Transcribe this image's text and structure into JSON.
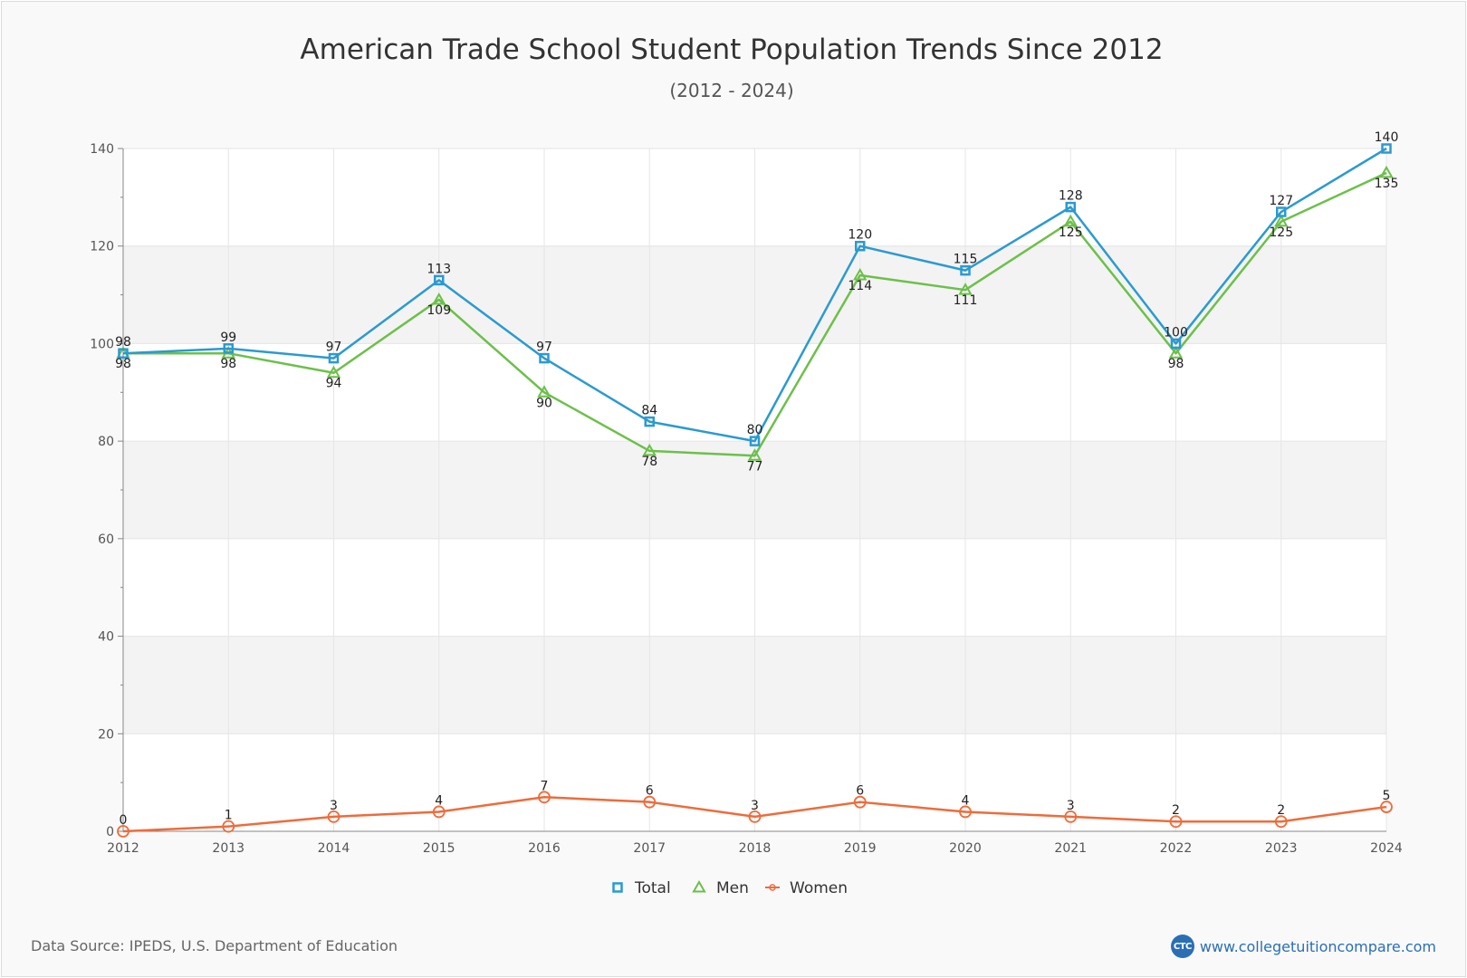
{
  "chart_data": {
    "type": "line",
    "title": "American Trade School Student Population Trends Since 2012",
    "subtitle": "(2012 - 2024)",
    "xlabel": "",
    "ylabel": "",
    "x": [
      "2012",
      "2013",
      "2014",
      "2015",
      "2016",
      "2017",
      "2018",
      "2019",
      "2020",
      "2021",
      "2022",
      "2023",
      "2024"
    ],
    "ylim": [
      0,
      140
    ],
    "yticks": [
      0,
      20,
      40,
      60,
      80,
      100,
      120,
      140
    ],
    "grid": true,
    "legend_position": "bottom",
    "series": [
      {
        "name": "Total",
        "color": "#2b9ad0",
        "marker": "square",
        "values": [
          98,
          99,
          97,
          113,
          97,
          84,
          80,
          120,
          115,
          128,
          100,
          127,
          140
        ]
      },
      {
        "name": "Men",
        "color": "#6cc04a",
        "marker": "triangle",
        "values": [
          98,
          98,
          94,
          109,
          90,
          78,
          77,
          114,
          111,
          125,
          98,
          125,
          135
        ]
      },
      {
        "name": "Women",
        "color": "#ef6b3a",
        "marker": "circle",
        "values": [
          0,
          1,
          3,
          4,
          7,
          6,
          3,
          6,
          4,
          3,
          2,
          2,
          5
        ]
      }
    ]
  },
  "footer": {
    "source": "Data Source: IPEDS, U.S. Department of Education",
    "brand_logo": "CTC",
    "brand_url": "www.collegetuitioncompare.com"
  },
  "colors": {
    "background": "#f9f9f9",
    "band": "#f3f3f3",
    "axis": "#555555",
    "brand": "#2a6fb5"
  }
}
